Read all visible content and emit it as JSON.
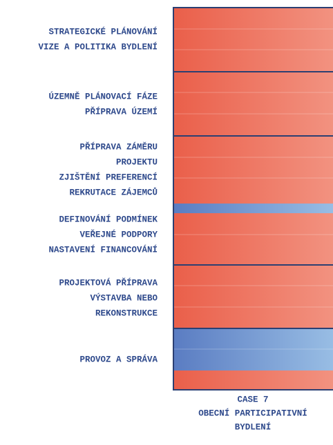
{
  "stages": [
    {
      "lines": [
        "STRATEGICKÉ PLÁNOVÁNÍ",
        "VIZE A POLITIKA BYDLENÍ"
      ]
    },
    {
      "lines": [
        "ÚZEMNĚ PLÁNOVACÍ FÁZE",
        "PŘÍPRAVA ÚZEMÍ"
      ]
    },
    {
      "lines": [
        "PŘÍPRAVA ZÁMĚRU",
        "PROJEKTU",
        "ZJIŠTĚNÍ PREFERENCÍ",
        "REKRUTACE ZÁJEMCŮ"
      ]
    },
    {
      "lines": [
        "DEFINOVÁNÍ PODMÍNEK",
        "VEŘEJNÉ PODPORY",
        "NASTAVENÍ FINANCOVÁNÍ"
      ]
    },
    {
      "lines": [
        "PROJEKTOVÁ PŘÍPRAVA",
        "VÝSTAVBA NEBO",
        "REKONSTRUKCE"
      ]
    },
    {
      "lines": [
        "PROVOZ A SPRÁVA"
      ]
    }
  ],
  "caption": {
    "lines": [
      "CASE 7",
      "OBECNÍ PARTICIPATIVNÍ",
      "BYDLENÍ"
    ]
  }
}
